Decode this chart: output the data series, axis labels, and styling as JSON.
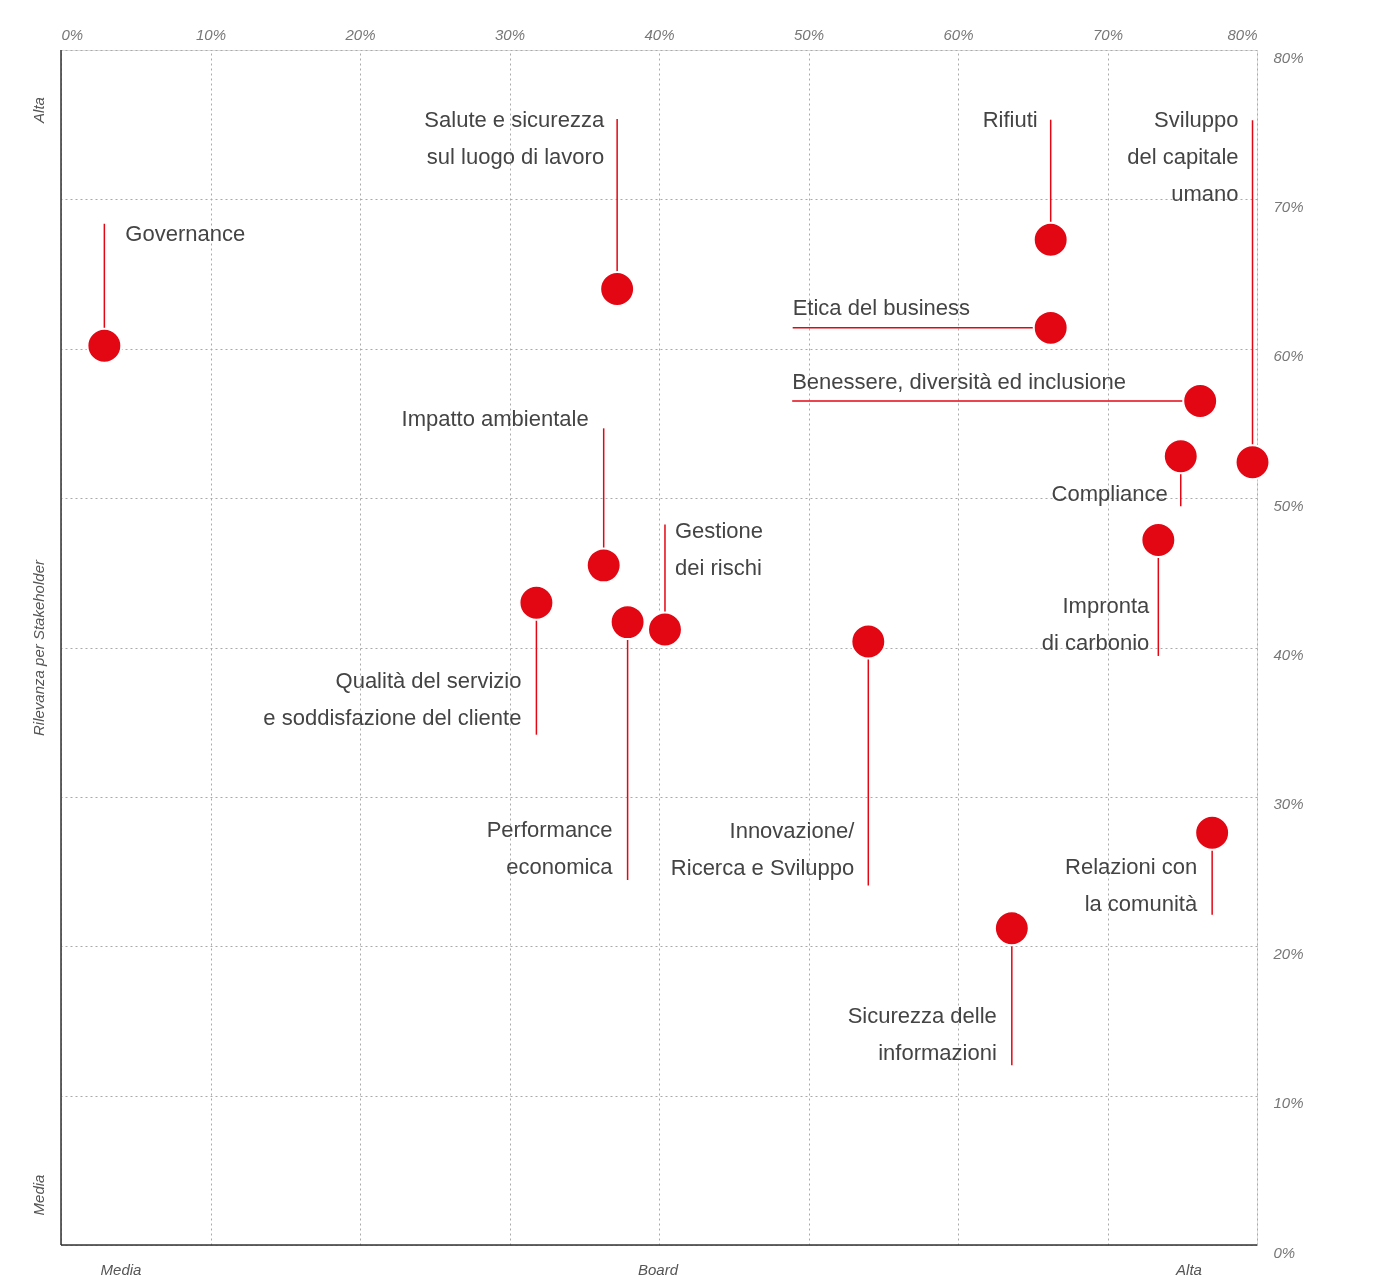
{
  "chart_data": {
    "type": "scatter",
    "xlabel": "Board",
    "ylabel": "Rilevanza per Stakeholder",
    "x": [
      2.9,
      37.2,
      66.2,
      79.7,
      66.2,
      76.2,
      74.9,
      73.4,
      36.3,
      31.8,
      37.9,
      40.4,
      54.0,
      77.0,
      63.6
    ],
    "series": [
      {
        "color": "#e30613",
        "values": [
          60.2,
          64.0,
          67.3,
          52.4,
          61.4,
          56.5,
          52.8,
          47.2,
          45.5,
          43.0,
          41.7,
          41.2,
          40.4,
          27.6,
          21.2
        ]
      }
    ],
    "marker": "circle",
    "xlim": [
      0,
      80
    ],
    "ylim": [
      0,
      80
    ],
    "xticks": [
      {
        "value": 0,
        "label": "0%"
      },
      {
        "value": 10,
        "label": "10%"
      },
      {
        "value": 20,
        "label": "20%"
      },
      {
        "value": 30,
        "label": "30%"
      },
      {
        "value": 40,
        "label": "40%"
      },
      {
        "value": 50,
        "label": "50%"
      },
      {
        "value": 60,
        "label": "60%"
      },
      {
        "value": 70,
        "label": "70%"
      },
      {
        "value": 80,
        "label": "80%"
      }
    ],
    "yticks": [
      {
        "value": 0,
        "label": "0%"
      },
      {
        "value": 10,
        "label": "10%"
      },
      {
        "value": 20,
        "label": "20%"
      },
      {
        "value": 30,
        "label": "30%"
      },
      {
        "value": 40,
        "label": "40%"
      },
      {
        "value": 50,
        "label": "50%"
      },
      {
        "value": 60,
        "label": "60%"
      },
      {
        "value": 70,
        "label": "70%"
      },
      {
        "value": 80,
        "label": "80%"
      }
    ],
    "grid": true,
    "annotations": [
      {
        "text": "Governance",
        "x": 2.9,
        "y": 60.2
      },
      {
        "text": "Salute e sicurezza\nsul luogo di lavoro",
        "x": 37.2,
        "y": 64.0
      },
      {
        "text": "Rifiuti",
        "x": 66.2,
        "y": 67.3
      },
      {
        "text": "Sviluppo\ndel capitale\numano",
        "x": 79.7,
        "y": 52.4
      },
      {
        "text": "Etica del business",
        "x": 66.2,
        "y": 61.4
      },
      {
        "text": "Benessere, diversità ed inclusione",
        "x": 76.2,
        "y": 56.5
      },
      {
        "text": "Compliance",
        "x": 74.9,
        "y": 52.8
      },
      {
        "text": "Impronta\ndi carbonio",
        "x": 73.4,
        "y": 47.2
      },
      {
        "text": "Impatto ambientale",
        "x": 36.3,
        "y": 45.5
      },
      {
        "text": "Qualità del servizio\ne soddisfazione del cliente",
        "x": 31.8,
        "y": 43.0
      },
      {
        "text": "Performance\neconomica",
        "x": 37.9,
        "y": 41.7
      },
      {
        "text": "Gestione\ndei rischi",
        "x": 40.4,
        "y": 41.2
      },
      {
        "text": "Innovazione/\nRicerca e Sviluppo",
        "x": 54.0,
        "y": 40.4
      },
      {
        "text": "Relazioni con\nla comunità",
        "x": 77.0,
        "y": 27.6
      },
      {
        "text": "Sicurezza delle\ninformazioni",
        "x": 63.6,
        "y": 21.2
      },
      "Media",
      "Alta",
      "Alta",
      "Media"
    ]
  }
}
